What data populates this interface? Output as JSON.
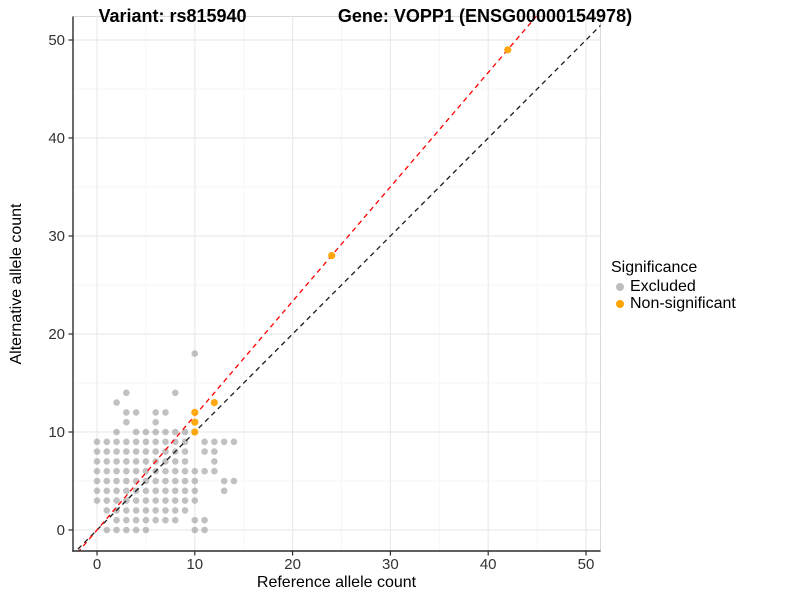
{
  "figure": {
    "title_left": "Variant: rs815940",
    "title_right": "Gene: VOPP1 (ENSG00000154978)"
  },
  "axes": {
    "x_label": "Reference allele count",
    "y_label": "Alternative allele count"
  },
  "legend": {
    "title": "Significance",
    "items": [
      {
        "label": "Excluded",
        "color": "#BDBDBD"
      },
      {
        "label": "Non-significant",
        "color": "#FFA405"
      }
    ]
  },
  "colors": {
    "excluded_point": "#9B9B9B",
    "nonsignificant_point": "#FFA405",
    "identity_line": "#1A1A1A",
    "ratio_line": "#FF0000",
    "axis_line": "#2B2B2B",
    "tick_text": "#333333",
    "grid_major": "#EBEBEB",
    "grid_minor": "#F6F6F6",
    "panel_border": "#D9D9D9"
  },
  "chart_data": {
    "type": "scatter",
    "title": "Variant: rs815940 / Gene: VOPP1 (ENSG00000154978)",
    "xlabel": "Reference allele count",
    "ylabel": "Alternative allele count",
    "xlim": [
      -2.6,
      51.6
    ],
    "ylim": [
      -2.2,
      52.4
    ],
    "x_ticks": [
      0,
      10,
      20,
      30,
      40,
      50
    ],
    "y_ticks": [
      0,
      10,
      20,
      30,
      40,
      50
    ],
    "x_minor_ticks": [
      5,
      15,
      25,
      35,
      45
    ],
    "y_minor_ticks": [
      5,
      15,
      25,
      35,
      45
    ],
    "grid": "major+minor",
    "legend_position": "right",
    "series": [
      {
        "name": "Excluded",
        "color": "#9B9B9B",
        "opacity": 0.62,
        "radius": 3.3,
        "points": [
          [
            1,
            0
          ],
          [
            2,
            0
          ],
          [
            3,
            0
          ],
          [
            4,
            0
          ],
          [
            5,
            0
          ],
          [
            10,
            0
          ],
          [
            11,
            0
          ],
          [
            2,
            1
          ],
          [
            3,
            1
          ],
          [
            4,
            1
          ],
          [
            5,
            1
          ],
          [
            6,
            1
          ],
          [
            7,
            1
          ],
          [
            8,
            1
          ],
          [
            10,
            1
          ],
          [
            11,
            1
          ],
          [
            1,
            2
          ],
          [
            2,
            2
          ],
          [
            3,
            2
          ],
          [
            4,
            2
          ],
          [
            5,
            2
          ],
          [
            6,
            2
          ],
          [
            7,
            2
          ],
          [
            8,
            2
          ],
          [
            9,
            2
          ],
          [
            0,
            3
          ],
          [
            1,
            3
          ],
          [
            2,
            3
          ],
          [
            3,
            3
          ],
          [
            4,
            3
          ],
          [
            5,
            3
          ],
          [
            6,
            3
          ],
          [
            7,
            3
          ],
          [
            8,
            3
          ],
          [
            9,
            3
          ],
          [
            10,
            3
          ],
          [
            0,
            4
          ],
          [
            1,
            4
          ],
          [
            2,
            4
          ],
          [
            3,
            4
          ],
          [
            4,
            4
          ],
          [
            5,
            4
          ],
          [
            6,
            4
          ],
          [
            7,
            4
          ],
          [
            8,
            4
          ],
          [
            9,
            4
          ],
          [
            10,
            4
          ],
          [
            13,
            4
          ],
          [
            0,
            5
          ],
          [
            1,
            5
          ],
          [
            2,
            5
          ],
          [
            3,
            5
          ],
          [
            4,
            5
          ],
          [
            5,
            5
          ],
          [
            6,
            5
          ],
          [
            7,
            5
          ],
          [
            8,
            5
          ],
          [
            9,
            5
          ],
          [
            10,
            5
          ],
          [
            13,
            5
          ],
          [
            14,
            5
          ],
          [
            0,
            6
          ],
          [
            1,
            6
          ],
          [
            2,
            6
          ],
          [
            3,
            6
          ],
          [
            4,
            6
          ],
          [
            5,
            6
          ],
          [
            6,
            6
          ],
          [
            7,
            6
          ],
          [
            8,
            6
          ],
          [
            9,
            6
          ],
          [
            10,
            6
          ],
          [
            11,
            6
          ],
          [
            12,
            6
          ],
          [
            0,
            7
          ],
          [
            1,
            7
          ],
          [
            2,
            7
          ],
          [
            3,
            7
          ],
          [
            4,
            7
          ],
          [
            5,
            7
          ],
          [
            6,
            7
          ],
          [
            7,
            7
          ],
          [
            8,
            7
          ],
          [
            9,
            7
          ],
          [
            12,
            7
          ],
          [
            0,
            8
          ],
          [
            1,
            8
          ],
          [
            2,
            8
          ],
          [
            3,
            8
          ],
          [
            4,
            8
          ],
          [
            5,
            8
          ],
          [
            6,
            8
          ],
          [
            7,
            8
          ],
          [
            8,
            8
          ],
          [
            9,
            8
          ],
          [
            11,
            8
          ],
          [
            12,
            8
          ],
          [
            0,
            9
          ],
          [
            1,
            9
          ],
          [
            2,
            9
          ],
          [
            3,
            9
          ],
          [
            4,
            9
          ],
          [
            5,
            9
          ],
          [
            6,
            9
          ],
          [
            7,
            9
          ],
          [
            8,
            9
          ],
          [
            9,
            9
          ],
          [
            11,
            9
          ],
          [
            12,
            9
          ],
          [
            13,
            9
          ],
          [
            14,
            9
          ],
          [
            2,
            10
          ],
          [
            4,
            10
          ],
          [
            5,
            10
          ],
          [
            6,
            10
          ],
          [
            7,
            10
          ],
          [
            8,
            10
          ],
          [
            9,
            10
          ],
          [
            3,
            11
          ],
          [
            6,
            11
          ],
          [
            3,
            12
          ],
          [
            4,
            12
          ],
          [
            6,
            12
          ],
          [
            7,
            12
          ],
          [
            2,
            13
          ],
          [
            3,
            14
          ],
          [
            8,
            14
          ],
          [
            10,
            18
          ]
        ]
      },
      {
        "name": "Non-significant",
        "color": "#FFA405",
        "opacity": 0.95,
        "radius": 3.6,
        "points": [
          [
            10,
            10
          ],
          [
            10,
            11
          ],
          [
            10,
            12
          ],
          [
            12,
            13
          ],
          [
            24,
            28
          ],
          [
            42,
            49
          ]
        ]
      }
    ],
    "reference_lines": [
      {
        "name": "identity",
        "slope": 1,
        "intercept": 0,
        "color": "#1A1A1A",
        "dash": "dashed"
      },
      {
        "name": "expected-ratio",
        "slope": 1.167,
        "intercept": 0,
        "color": "#FF0000",
        "dash": "dashed"
      }
    ]
  }
}
